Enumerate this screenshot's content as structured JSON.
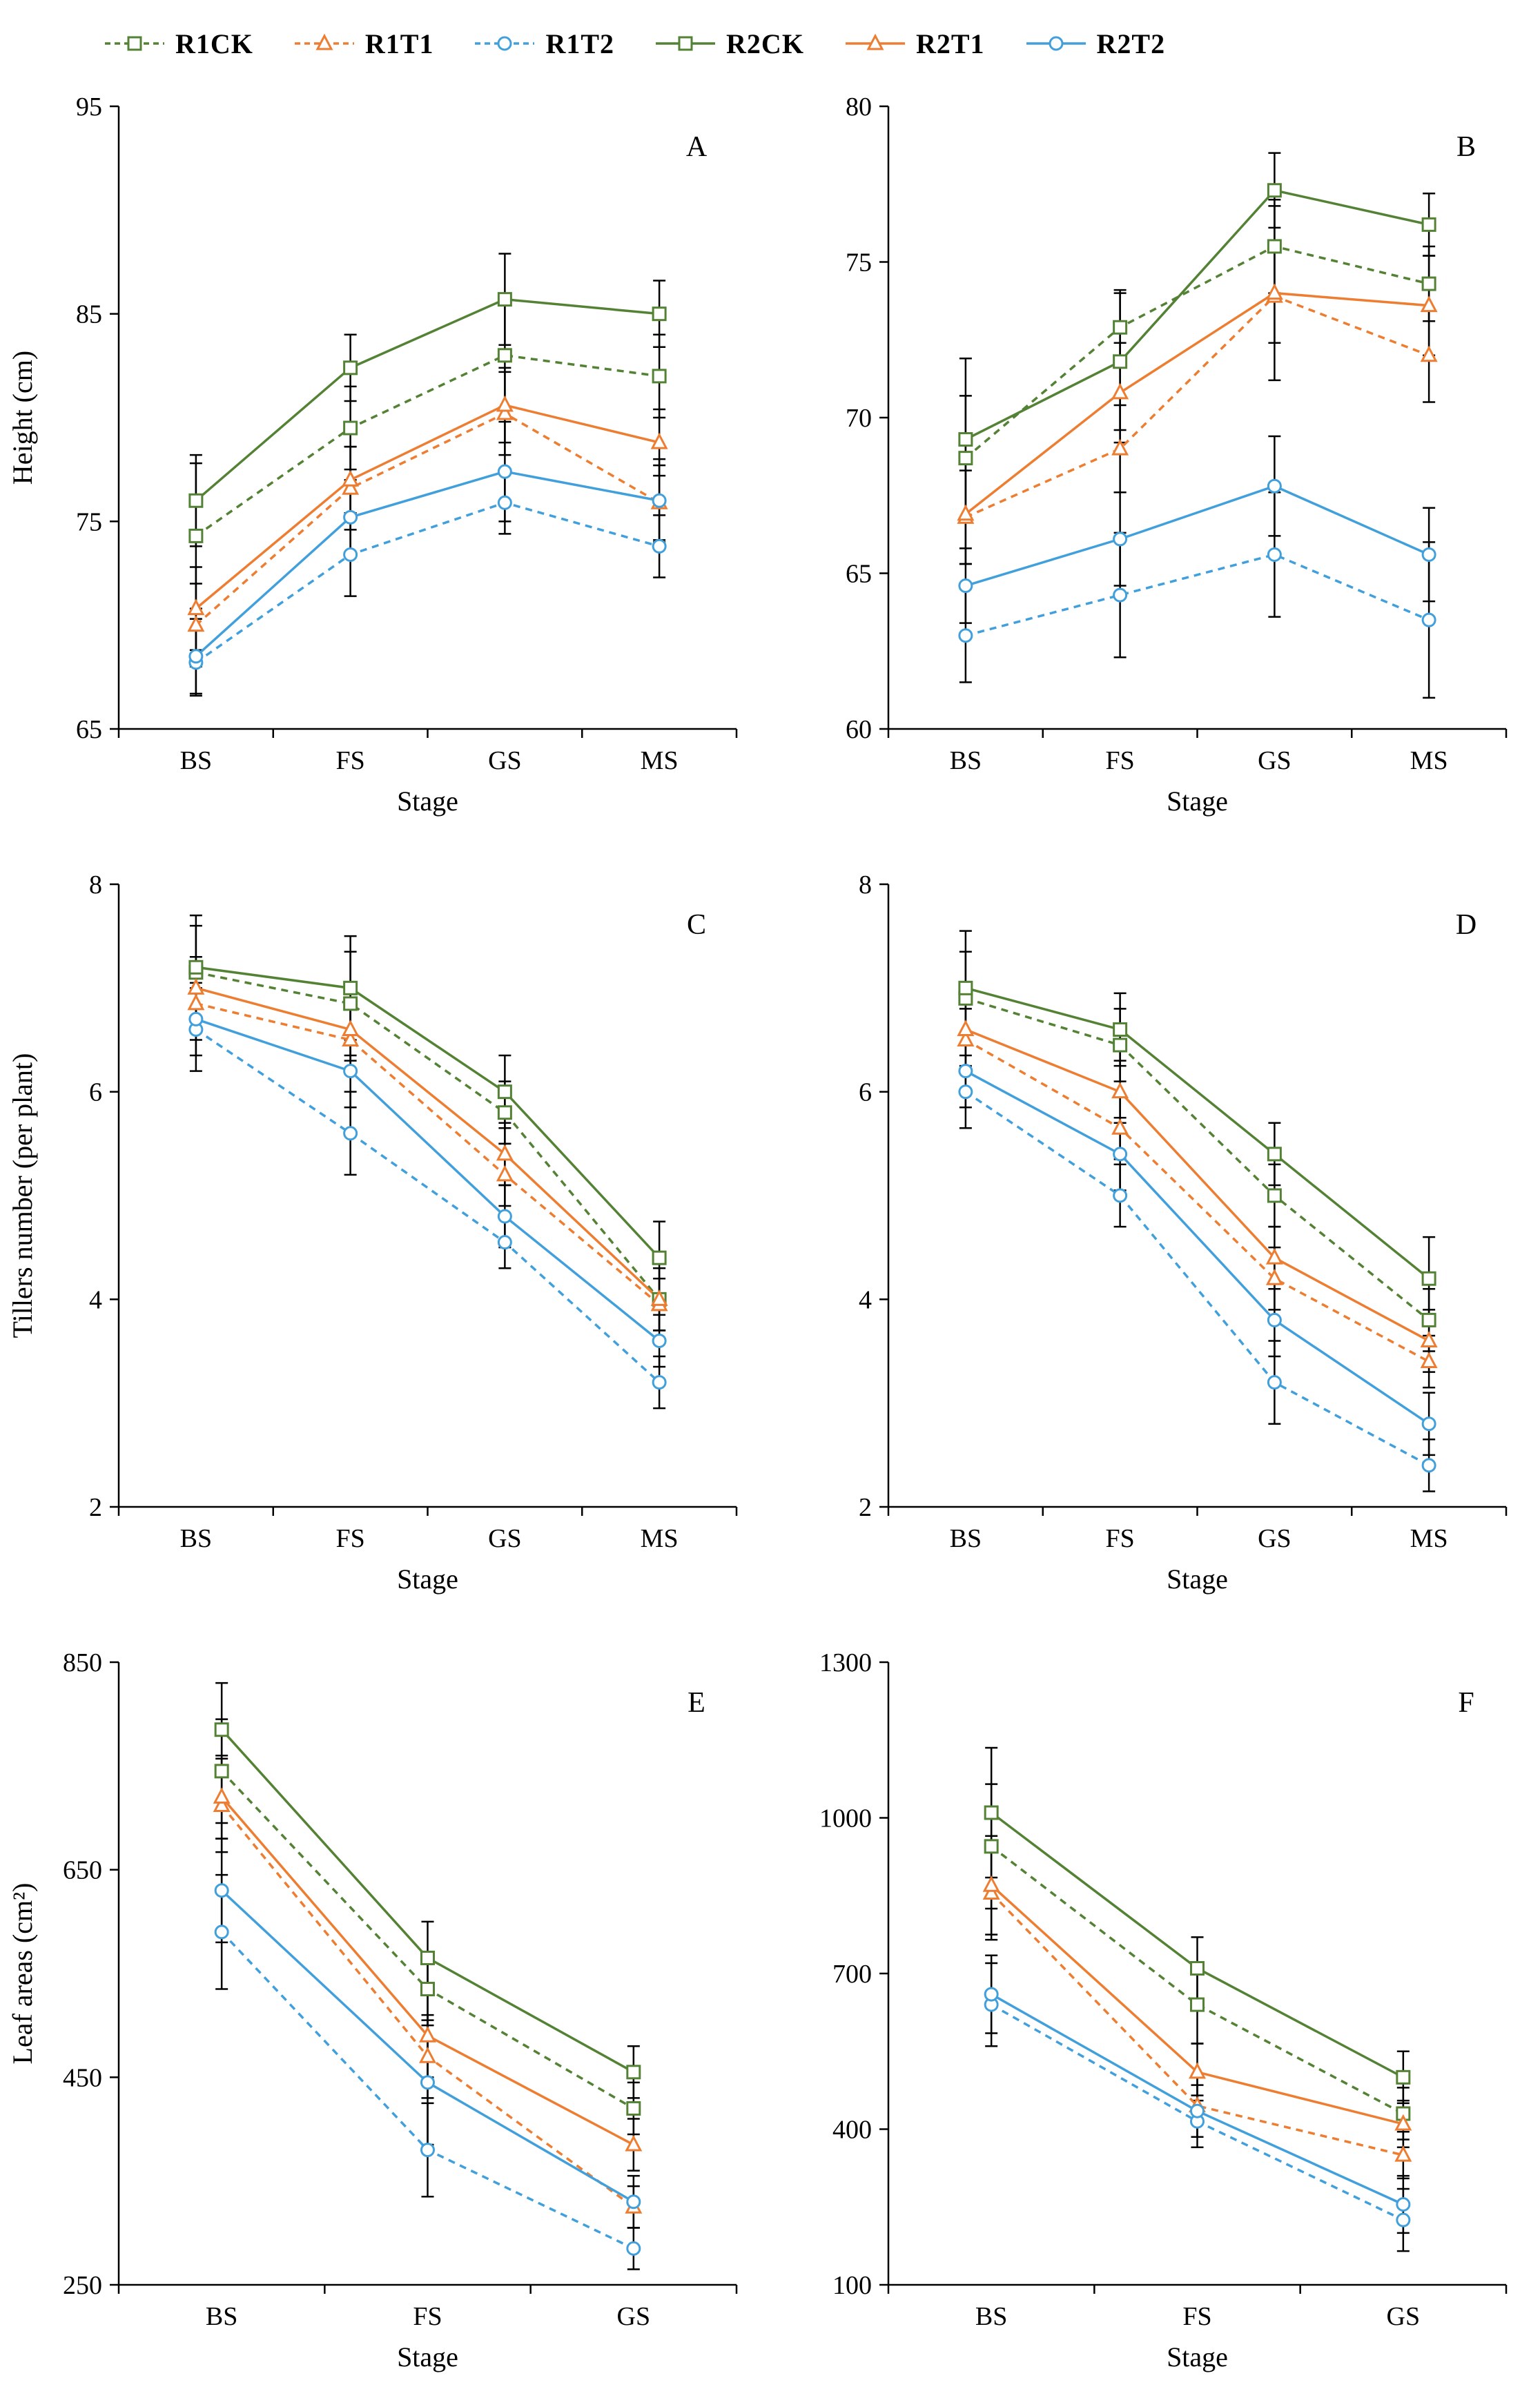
{
  "page": {
    "background": "#ffffff",
    "text_color": "#000000",
    "error_bar_color": "#000000"
  },
  "legend": {
    "items": [
      {
        "label": "R1CK",
        "color": "#548235",
        "marker": "square",
        "dashed": true
      },
      {
        "label": "R1T1",
        "color": "#ED7D31",
        "marker": "triangle",
        "dashed": true
      },
      {
        "label": "R1T2",
        "color": "#41A0DC",
        "marker": "circle",
        "dashed": true
      },
      {
        "label": "R2CK",
        "color": "#548235",
        "marker": "square",
        "dashed": false
      },
      {
        "label": "R2T1",
        "color": "#ED7D31",
        "marker": "triangle",
        "dashed": false
      },
      {
        "label": "R2T2",
        "color": "#41A0DC",
        "marker": "circle",
        "dashed": false
      }
    ]
  },
  "chart_data": [
    {
      "type": "line",
      "panel": "A",
      "ylabel": "Height (cm)",
      "xlabel": "Stage",
      "categories": [
        "BS",
        "FS",
        "GS",
        "MS"
      ],
      "ylim": [
        65,
        95
      ],
      "yticks": [
        65,
        75,
        85,
        95
      ],
      "grid": false,
      "legend_position": "top",
      "series": [
        {
          "name": "R1CK",
          "values": [
            74.3,
            79.5,
            83.0,
            82.0
          ],
          "errors": [
            3.5,
            2.0,
            2.5,
            2.0
          ]
        },
        {
          "name": "R1T1",
          "values": [
            70.0,
            76.6,
            80.2,
            75.9
          ],
          "errors": [
            2.0,
            2.0,
            2.0,
            1.8
          ]
        },
        {
          "name": "R1T2",
          "values": [
            68.2,
            73.4,
            75.9,
            73.8
          ],
          "errors": [
            1.6,
            2.0,
            1.5,
            1.5
          ]
        },
        {
          "name": "R2CK",
          "values": [
            76.0,
            82.4,
            85.7,
            85.0
          ],
          "errors": [
            2.2,
            1.6,
            2.2,
            1.6
          ]
        },
        {
          "name": "R2T1",
          "values": [
            70.8,
            77.0,
            80.6,
            78.8
          ],
          "errors": [
            2.0,
            1.6,
            1.8,
            1.6
          ]
        },
        {
          "name": "R2T2",
          "values": [
            68.5,
            75.2,
            77.4,
            76.0
          ],
          "errors": [
            1.8,
            1.8,
            2.4,
            2.0
          ]
        }
      ]
    },
    {
      "type": "line",
      "panel": "B",
      "ylabel": "",
      "xlabel": "Stage",
      "categories": [
        "BS",
        "FS",
        "GS",
        "MS"
      ],
      "ylim": [
        60,
        80
      ],
      "yticks": [
        60,
        65,
        70,
        75,
        80
      ],
      "grid": false,
      "legend_position": "top",
      "series": [
        {
          "name": "R1CK",
          "values": [
            68.7,
            72.9,
            75.5,
            74.3
          ],
          "errors": [
            2.0,
            1.2,
            1.5,
            1.2
          ]
        },
        {
          "name": "R1T1",
          "values": [
            66.8,
            69.0,
            73.9,
            72.0
          ],
          "errors": [
            1.5,
            1.4,
            1.5,
            1.5
          ]
        },
        {
          "name": "R1T2",
          "values": [
            63.0,
            64.3,
            65.6,
            63.5
          ],
          "errors": [
            1.5,
            2.0,
            2.0,
            2.5
          ]
        },
        {
          "name": "R2CK",
          "values": [
            69.3,
            71.8,
            77.3,
            76.2
          ],
          "errors": [
            2.6,
            2.2,
            1.2,
            1.0
          ]
        },
        {
          "name": "R2T1",
          "values": [
            66.9,
            70.8,
            74.0,
            73.6
          ],
          "errors": [
            1.6,
            1.6,
            2.8,
            1.6
          ]
        },
        {
          "name": "R2T2",
          "values": [
            64.6,
            66.1,
            67.8,
            65.6
          ],
          "errors": [
            1.2,
            1.5,
            1.6,
            1.5
          ]
        }
      ]
    },
    {
      "type": "line",
      "panel": "C",
      "ylabel": "Tillers number (per plant)",
      "xlabel": "Stage",
      "categories": [
        "BS",
        "FS",
        "GS",
        "MS"
      ],
      "ylim": [
        2,
        8
      ],
      "yticks": [
        2,
        4,
        6,
        8
      ],
      "grid": false,
      "legend_position": "top",
      "series": [
        {
          "name": "R1CK",
          "values": [
            7.15,
            6.85,
            5.8,
            4.0
          ],
          "errors": [
            0.45,
            0.5,
            0.3,
            0.3
          ]
        },
        {
          "name": "R1T1",
          "values": [
            6.85,
            6.5,
            5.2,
            3.95
          ],
          "errors": [
            0.35,
            0.3,
            0.3,
            0.25
          ]
        },
        {
          "name": "R1T2",
          "values": [
            6.6,
            5.6,
            4.55,
            3.2
          ],
          "errors": [
            0.4,
            0.4,
            0.25,
            0.25
          ]
        },
        {
          "name": "R2CK",
          "values": [
            7.2,
            7.0,
            6.0,
            4.4
          ],
          "errors": [
            0.5,
            0.5,
            0.35,
            0.35
          ]
        },
        {
          "name": "R2T1",
          "values": [
            7.0,
            6.6,
            5.4,
            4.0
          ],
          "errors": [
            0.3,
            0.3,
            0.3,
            0.3
          ]
        },
        {
          "name": "R2T2",
          "values": [
            6.7,
            6.2,
            4.8,
            3.6
          ],
          "errors": [
            0.35,
            0.35,
            0.3,
            0.25
          ]
        }
      ]
    },
    {
      "type": "line",
      "panel": "D",
      "ylabel": "",
      "xlabel": "Stage",
      "categories": [
        "BS",
        "FS",
        "GS",
        "MS"
      ],
      "ylim": [
        2,
        8
      ],
      "yticks": [
        2,
        4,
        6,
        8
      ],
      "grid": false,
      "legend_position": "top",
      "series": [
        {
          "name": "R1CK",
          "values": [
            6.9,
            6.45,
            5.0,
            3.8
          ],
          "errors": [
            0.45,
            0.35,
            0.3,
            0.3
          ]
        },
        {
          "name": "R1T1",
          "values": [
            6.5,
            5.65,
            4.2,
            3.4
          ],
          "errors": [
            0.3,
            0.3,
            0.3,
            0.25
          ]
        },
        {
          "name": "R1T2",
          "values": [
            6.0,
            5.0,
            3.2,
            2.4
          ],
          "errors": [
            0.35,
            0.3,
            0.4,
            0.25
          ]
        },
        {
          "name": "R2CK",
          "values": [
            7.0,
            6.6,
            5.4,
            4.2
          ],
          "errors": [
            0.55,
            0.35,
            0.3,
            0.4
          ]
        },
        {
          "name": "R2T1",
          "values": [
            6.6,
            6.0,
            4.4,
            3.6
          ],
          "errors": [
            0.35,
            0.3,
            0.3,
            0.3
          ]
        },
        {
          "name": "R2T2",
          "values": [
            6.2,
            5.4,
            3.8,
            2.8
          ],
          "errors": [
            0.35,
            0.35,
            0.35,
            0.3
          ]
        }
      ]
    },
    {
      "type": "line",
      "panel": "E",
      "ylabel": "Leaf areas (cm²)",
      "xlabel": "Stage",
      "categories": [
        "BS",
        "FS",
        "GS"
      ],
      "ylim": [
        250,
        850
      ],
      "yticks": [
        250,
        450,
        650,
        850
      ],
      "grid": false,
      "legend_position": "top",
      "series": [
        {
          "name": "R1CK",
          "values": [
            745,
            535,
            420
          ],
          "errors": [
            50,
            35,
            25
          ]
        },
        {
          "name": "R1T1",
          "values": [
            712,
            470,
            325
          ],
          "errors": [
            45,
            40,
            20
          ]
        },
        {
          "name": "R1T2",
          "values": [
            590,
            380,
            285
          ],
          "errors": [
            55,
            45,
            20
          ]
        },
        {
          "name": "R2CK",
          "values": [
            785,
            565,
            455
          ],
          "errors": [
            45,
            35,
            25
          ]
        },
        {
          "name": "R2T1",
          "values": [
            720,
            490,
            385
          ],
          "errors": [
            40,
            40,
            25
          ]
        },
        {
          "name": "R2T2",
          "values": [
            630,
            445,
            330
          ],
          "errors": [
            50,
            60,
            25
          ]
        }
      ]
    },
    {
      "type": "line",
      "panel": "F",
      "ylabel": "",
      "xlabel": "Stage",
      "categories": [
        "BS",
        "FS",
        "GS"
      ],
      "ylim": [
        100,
        1300
      ],
      "yticks": [
        100,
        400,
        700,
        1000,
        1300
      ],
      "grid": false,
      "legend_position": "top",
      "series": [
        {
          "name": "R1CK",
          "values": [
            945,
            640,
            430
          ],
          "errors": [
            120,
            75,
            50
          ]
        },
        {
          "name": "R1T1",
          "values": [
            855,
            445,
            350
          ],
          "errors": [
            90,
            60,
            45
          ]
        },
        {
          "name": "R1T2",
          "values": [
            640,
            415,
            225
          ],
          "errors": [
            80,
            50,
            60
          ]
        },
        {
          "name": "R2CK",
          "values": [
            1010,
            710,
            500
          ],
          "errors": [
            125,
            60,
            50
          ]
        },
        {
          "name": "R2T1",
          "values": [
            870,
            510,
            410
          ],
          "errors": [
            95,
            55,
            45
          ]
        },
        {
          "name": "R2T2",
          "values": [
            660,
            435,
            255
          ],
          "errors": [
            75,
            50,
            55
          ]
        }
      ]
    }
  ]
}
